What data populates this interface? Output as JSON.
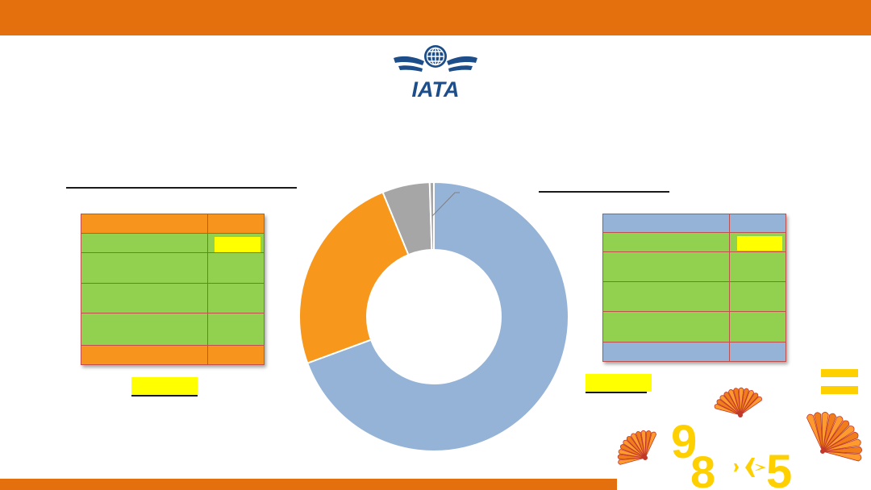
{
  "brand": {
    "logo_text": "IATA",
    "colors": {
      "orange": "#e4700d",
      "green": "#92d050",
      "blue": "#95b3d7",
      "gray": "#a6a6a6",
      "yellow": "#ffff00",
      "gold": "#ffd000"
    }
  },
  "left_table": {
    "header_color": "#f7941d",
    "row_color": "#92d050",
    "footer_color": "#f7941d",
    "highlighted_row": 1
  },
  "right_table": {
    "header_color": "#95b3d7",
    "row_color": "#92d050",
    "footer_color": "#95b3d7",
    "highlighted_row": 1
  },
  "chart_data": {
    "type": "pie",
    "donut": true,
    "slices": [
      {
        "value": 69.4,
        "color": "#95b3d7"
      },
      {
        "value": 24.4,
        "color": "#f7971c"
      },
      {
        "value": 5.7,
        "color": "#a6a6a6"
      },
      {
        "value": 0.5,
        "color": "#a6a6a6"
      }
    ],
    "leader_line_on_slice": 3
  },
  "decoration": {
    "icon_names": [
      "fan-icon",
      "plane-icon",
      "equals-icon"
    ],
    "numerals": [
      "9",
      "8",
      "5"
    ]
  }
}
